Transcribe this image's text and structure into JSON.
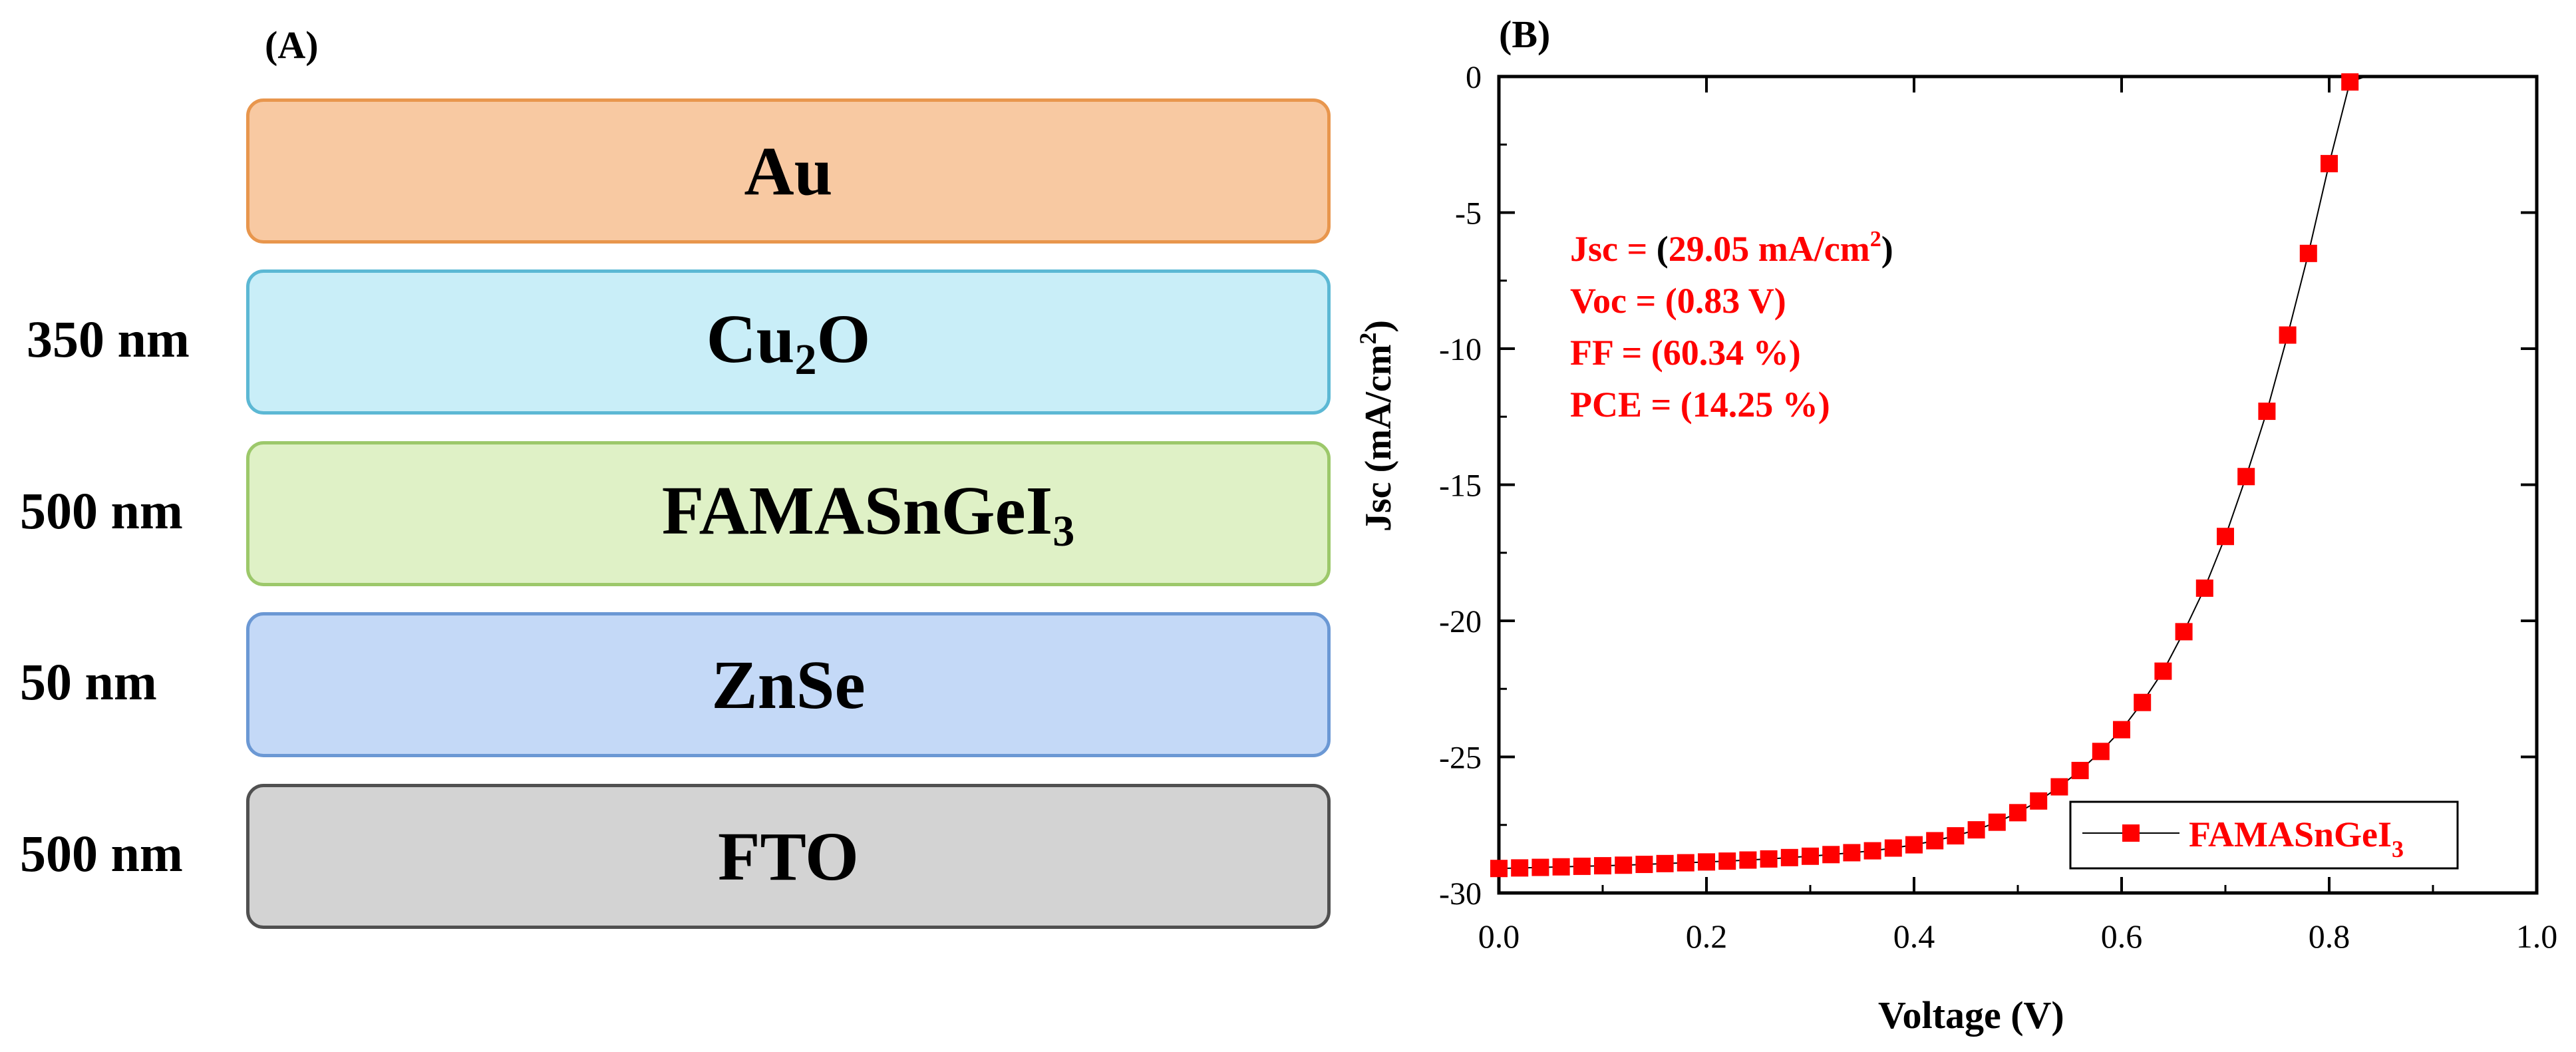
{
  "panel_a": {
    "label": "(A)",
    "layers": [
      {
        "name": "Au",
        "sub": "",
        "name_tail": "",
        "thickness": "",
        "fill": "#f8c9a2",
        "stroke": "#e8964d"
      },
      {
        "name": "Cu",
        "sub": "2",
        "name_tail": "O",
        "thickness": "350 nm",
        "fill": "#c9eef8",
        "stroke": "#5cb8d4"
      },
      {
        "name": "FAMASnGeI",
        "sub": "3",
        "name_tail": "",
        "thickness": "500 nm",
        "fill": "#dff1c6",
        "stroke": "#9cc86a"
      },
      {
        "name": "ZnSe",
        "sub": "",
        "name_tail": "",
        "thickness": "50 nm",
        "fill": "#c4d9f7",
        "stroke": "#6b98d4"
      },
      {
        "name": "FTO",
        "sub": "",
        "name_tail": "",
        "thickness": "500 nm",
        "fill": "#d3d3d3",
        "stroke": "#505050"
      }
    ]
  },
  "panel_b": {
    "label": "(B)",
    "annotations": [
      {
        "prefix": "Jsc = ",
        "paren_open": "(",
        "value": "29.05 mA/cm",
        "sup": "2",
        "paren_close": ")"
      },
      {
        "prefix": "Voc = (0.83 V)",
        "paren_open": "",
        "value": "",
        "sup": "",
        "paren_close": ""
      },
      {
        "prefix": "FF = (60.34 %)",
        "paren_open": "",
        "value": "",
        "sup": "",
        "paren_close": ""
      },
      {
        "prefix": "PCE = (14.25 %)",
        "paren_open": "",
        "value": "",
        "sup": "",
        "paren_close": ""
      }
    ]
  },
  "chart_data": {
    "type": "line",
    "title": "",
    "xlabel": "Voltage (V)",
    "ylabel": "Jsc (mA/cm",
    "ylabel_sup": "2",
    "ylabel_tail": ")",
    "xlim": [
      0.0,
      1.0
    ],
    "ylim": [
      -30,
      0
    ],
    "xticks": [
      "0.0",
      "0.2",
      "0.4",
      "0.6",
      "0.8",
      "1.0"
    ],
    "yticks": [
      "0",
      "-5",
      "-10",
      "-15",
      "-20",
      "-25",
      "-30"
    ],
    "legend": {
      "position": "bottom-right",
      "label": "FAMASnGeI",
      "label_sub": "3"
    },
    "series": [
      {
        "name": "FAMASnGeI3",
        "color": "#ff0000",
        "marker": "square",
        "x": [
          0.0,
          0.02,
          0.04,
          0.06,
          0.08,
          0.1,
          0.12,
          0.14,
          0.16,
          0.18,
          0.2,
          0.22,
          0.24,
          0.26,
          0.28,
          0.3,
          0.32,
          0.34,
          0.36,
          0.38,
          0.4,
          0.42,
          0.44,
          0.46,
          0.48,
          0.5,
          0.52,
          0.54,
          0.56,
          0.58,
          0.6,
          0.62,
          0.64,
          0.66,
          0.68,
          0.7,
          0.72,
          0.74,
          0.76,
          0.78,
          0.8,
          0.82
        ],
        "y": [
          -29.1,
          -29.08,
          -29.06,
          -29.04,
          -29.02,
          -29.0,
          -28.98,
          -28.95,
          -28.92,
          -28.89,
          -28.86,
          -28.83,
          -28.79,
          -28.75,
          -28.7,
          -28.65,
          -28.59,
          -28.52,
          -28.45,
          -28.35,
          -28.23,
          -28.08,
          -27.9,
          -27.68,
          -27.4,
          -27.05,
          -26.62,
          -26.1,
          -25.5,
          -24.8,
          -24.0,
          -23.0,
          -21.85,
          -20.4,
          -18.8,
          -16.9,
          -14.7,
          -12.3,
          -9.5,
          -6.5,
          -3.2,
          -0.2
        ]
      }
    ]
  }
}
